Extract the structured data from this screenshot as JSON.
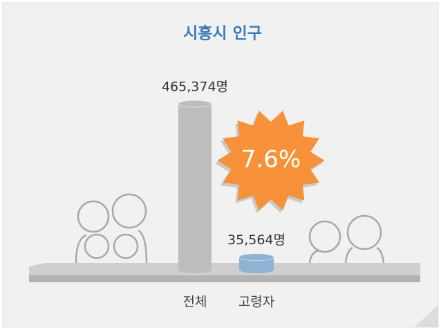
{
  "chart_data": {
    "type": "bar",
    "title": "시흥시 인구",
    "categories": [
      "전체",
      "고령자"
    ],
    "values": [
      465374,
      35564
    ],
    "value_labels": [
      "465,374명",
      "35,564명"
    ],
    "colors": [
      "#bdbdbd",
      "#8fb4d3"
    ],
    "annotation": "7.6%"
  }
}
